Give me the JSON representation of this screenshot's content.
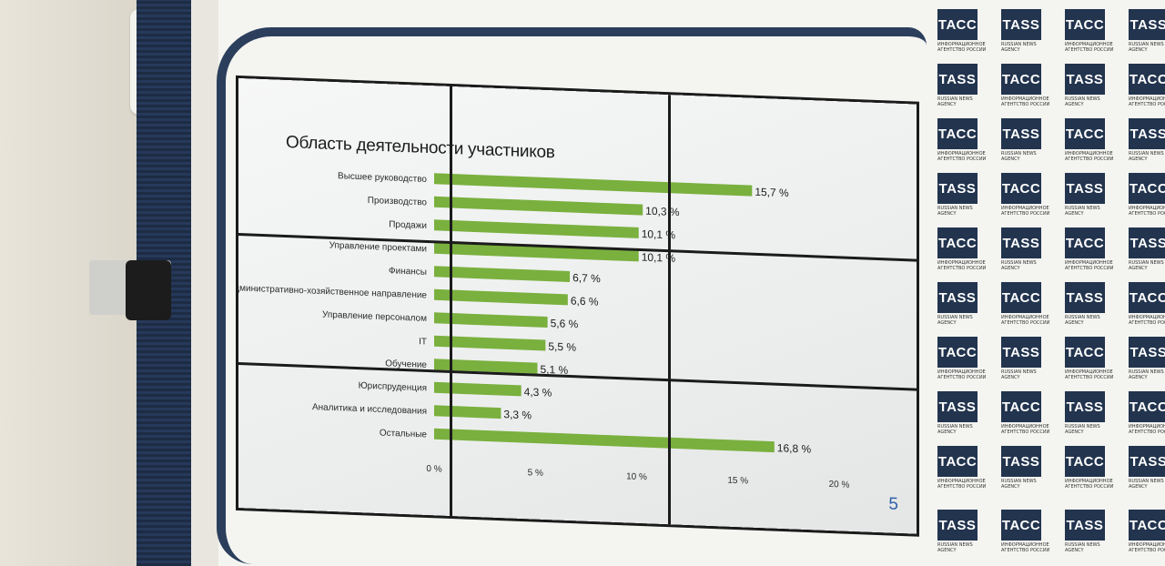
{
  "chart_data": {
    "type": "bar",
    "orientation": "horizontal",
    "title": "Область деятельности участников",
    "categories": [
      "Высшее руководство",
      "Производство",
      "Продажи",
      "Управление проектами",
      "Финансы",
      "Административно-хозяйственное направление",
      "Управление персоналом",
      "IT",
      "Обучение",
      "Юриспруденция",
      "Аналитика и исследования",
      "Остальные"
    ],
    "values": [
      15.7,
      10.3,
      10.1,
      10.1,
      6.7,
      6.6,
      5.6,
      5.5,
      5.1,
      4.3,
      3.3,
      16.8
    ],
    "value_labels": [
      "15,7 %",
      "10,3 %",
      "10,1 %",
      "10,1 %",
      "6,7 %",
      "6,6 %",
      "5,6 %",
      "5,5 %",
      "5,1 %",
      "4,3 %",
      "3,3 %",
      "16,8 %"
    ],
    "xlim": [
      0,
      20
    ],
    "xticks": [
      "0 %",
      "5 %",
      "10 %",
      "15 %",
      "20 %"
    ],
    "bar_color": "#7ab03e",
    "grid": false,
    "page_number": "5"
  },
  "backdrop": {
    "logo_text": "ТАСС",
    "logo_text_en": "TASS",
    "tagline_ru": "ИНФОРМАЦИОННОЕ АГЕНТСТВО РОССИИ",
    "tagline_en": "RUSSIAN NEWS AGENCY",
    "logo_color": "#22344e"
  }
}
